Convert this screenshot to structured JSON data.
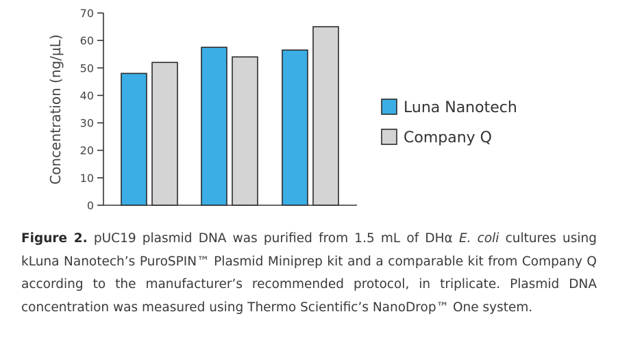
{
  "chart_data": {
    "type": "bar",
    "ylabel": "Concentration (ng/µL)",
    "ylim": [
      0,
      70
    ],
    "yticks": [
      0,
      10,
      20,
      30,
      40,
      50,
      60,
      70
    ],
    "grid": false,
    "legend_position": "right",
    "categories": [
      "",
      "",
      ""
    ],
    "series": [
      {
        "name": "Luna Nanotech",
        "color": "#3aaee5",
        "values": [
          48,
          57.5,
          56.5
        ]
      },
      {
        "name": "Company Q",
        "color": "#d4d4d4",
        "values": [
          52,
          54,
          65
        ]
      }
    ]
  },
  "caption": {
    "label": "Figure 2.",
    "part1": " pUC19 plasmid DNA was purified from 1.5 mL of DHα ",
    "species": "E. coli",
    "part2": " cultures using kLuna Nanotech’s PuroSPIN™ Plasmid Miniprep kit and a comparable kit from Company Q according to the manufacturer’s recommended protocol, in triplicate. Plasmid DNA concentration was measured using Thermo Scientific’s NanoDrop™ One system."
  }
}
